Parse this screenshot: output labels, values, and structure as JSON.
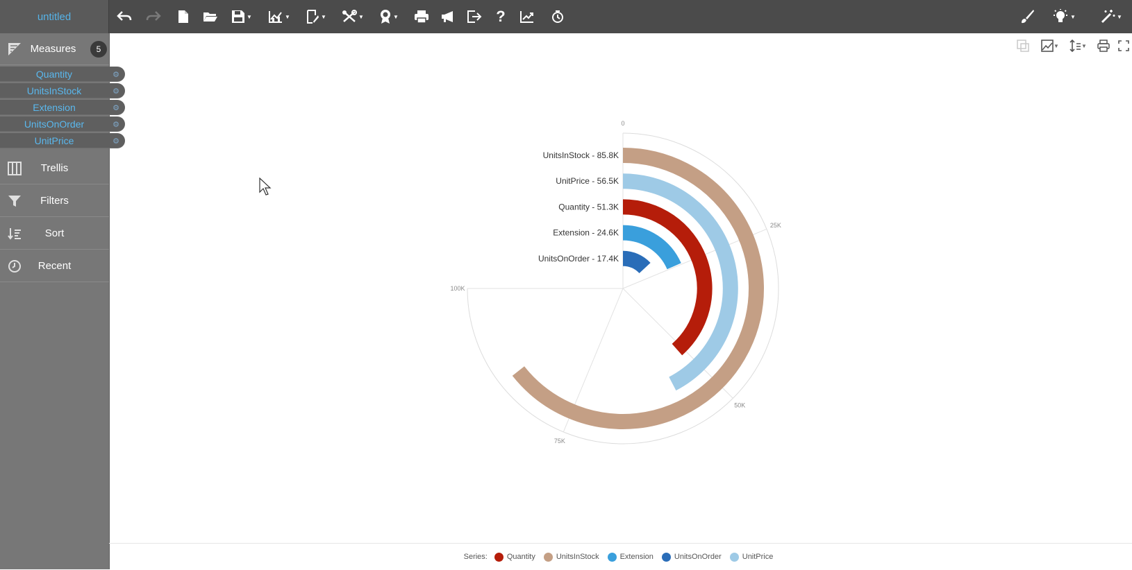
{
  "app": {
    "title": "untitled"
  },
  "toolbar": {
    "buttons": [
      {
        "name": "undo-icon",
        "glyph": "↶"
      },
      {
        "name": "redo-icon",
        "glyph": "↷"
      },
      {
        "name": "new-file-icon",
        "glyph": "🗋"
      },
      {
        "name": "open-folder-icon",
        "glyph": "📂"
      },
      {
        "name": "save-icon",
        "glyph": "💾"
      },
      {
        "name": "chart-type-icon",
        "glyph": "📈"
      },
      {
        "name": "edit-icon",
        "glyph": "✎"
      },
      {
        "name": "tools-icon",
        "glyph": "✂"
      },
      {
        "name": "award-icon",
        "glyph": "🏅"
      },
      {
        "name": "print-icon",
        "glyph": "⎙"
      },
      {
        "name": "announce-icon",
        "glyph": "📣"
      },
      {
        "name": "export-icon",
        "glyph": "⇥"
      },
      {
        "name": "help-icon",
        "glyph": "?"
      },
      {
        "name": "trend-icon",
        "glyph": "↗"
      },
      {
        "name": "history-icon",
        "glyph": "◷"
      },
      {
        "name": "brush-icon",
        "glyph": "🖌"
      },
      {
        "name": "lightbulb-icon",
        "glyph": "💡"
      },
      {
        "name": "magic-wand-icon",
        "glyph": "✨"
      }
    ]
  },
  "sidebar": {
    "measures_label": "Measures",
    "measures_count": "5",
    "measures": [
      "Quantity",
      "UnitsInStock",
      "Extension",
      "UnitsOnOrder",
      "UnitPrice"
    ],
    "sections": [
      "Trellis",
      "Filters",
      "Sort",
      "Recent"
    ]
  },
  "chart_tools": [
    "copy-icon",
    "image-icon",
    "height-icon",
    "print-icon",
    "fullscreen-icon"
  ],
  "chart_data": {
    "type": "radial-bar",
    "angular_axis_max": 100000,
    "angular_ticks": [
      "0",
      "25K",
      "50K",
      "75K",
      "100K"
    ],
    "series": [
      {
        "name": "UnitsInStock",
        "value": 85800,
        "label": "UnitsInStock - 85.8K",
        "color": "#c49f85"
      },
      {
        "name": "UnitPrice",
        "value": 56500,
        "label": "UnitPrice - 56.5K",
        "color": "#9ecae6"
      },
      {
        "name": "Quantity",
        "value": 51300,
        "label": "Quantity - 51.3K",
        "color": "#b51d0a"
      },
      {
        "name": "Extension",
        "value": 24600,
        "label": "Extension - 24.6K",
        "color": "#3a9fdc"
      },
      {
        "name": "UnitsOnOrder",
        "value": 17400,
        "label": "UnitsOnOrder - 17.4K",
        "color": "#2a6db8"
      }
    ]
  },
  "legend": {
    "title": "Series:",
    "items": [
      {
        "name": "Quantity",
        "color": "#b51d0a"
      },
      {
        "name": "UnitsInStock",
        "color": "#c49f85"
      },
      {
        "name": "Extension",
        "color": "#3a9fdc"
      },
      {
        "name": "UnitsOnOrder",
        "color": "#2a6db8"
      },
      {
        "name": "UnitPrice",
        "color": "#9ecae6"
      }
    ]
  }
}
